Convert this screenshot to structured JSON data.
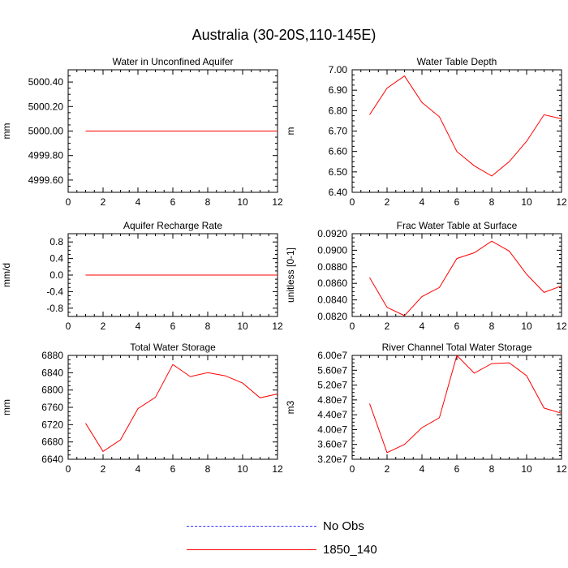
{
  "title": "Australia (30-20S,110-145E)",
  "colors": {
    "model": "#ff0000",
    "obs": "#3333ff",
    "axis": "#000000"
  },
  "legend": {
    "items": [
      {
        "label": "No Obs",
        "style": "dashed",
        "color": "#3333ff"
      },
      {
        "label": "1850_140",
        "style": "solid",
        "color": "#ff0000"
      }
    ]
  },
  "chart_data": [
    {
      "type": "line",
      "title": "Water in Unconfined Aquifer",
      "ylabel": "mm",
      "xlim": [
        0,
        12
      ],
      "ylim": [
        4999.5,
        5000.5
      ],
      "xticks": [
        0,
        2,
        4,
        6,
        8,
        10,
        12
      ],
      "yticks": [
        4999.6,
        4999.8,
        5000.0,
        5000.2,
        5000.4
      ],
      "ytick_labels": [
        "4999.60",
        "4999.80",
        "5000.00",
        "5000.20",
        "5000.40"
      ],
      "series": [
        {
          "name": "1850_140",
          "color": "#ff0000",
          "x": [
            1,
            2,
            3,
            4,
            5,
            6,
            7,
            8,
            9,
            10,
            11,
            12
          ],
          "y": [
            5000,
            5000,
            5000,
            5000,
            5000,
            5000,
            5000,
            5000,
            5000,
            5000,
            5000,
            5000
          ]
        }
      ]
    },
    {
      "type": "line",
      "title": "Water Table Depth",
      "ylabel": "m",
      "xlim": [
        0,
        12
      ],
      "ylim": [
        6.4,
        7.0
      ],
      "xticks": [
        0,
        2,
        4,
        6,
        8,
        10,
        12
      ],
      "yticks": [
        6.4,
        6.5,
        6.6,
        6.7,
        6.8,
        6.9,
        7.0
      ],
      "ytick_labels": [
        "6.40",
        "6.50",
        "6.60",
        "6.70",
        "6.80",
        "6.90",
        "7.00"
      ],
      "series": [
        {
          "name": "1850_140",
          "color": "#ff0000",
          "x": [
            1,
            2,
            3,
            4,
            5,
            6,
            7,
            8,
            9,
            10,
            11,
            12
          ],
          "y": [
            6.78,
            6.91,
            6.97,
            6.84,
            6.77,
            6.6,
            6.53,
            6.48,
            6.55,
            6.65,
            6.78,
            6.76
          ]
        }
      ]
    },
    {
      "type": "line",
      "title": "Aquifer Recharge Rate",
      "ylabel": "mm/d",
      "xlim": [
        0,
        12
      ],
      "ylim": [
        -1.0,
        1.0
      ],
      "xticks": [
        0,
        2,
        4,
        6,
        8,
        10,
        12
      ],
      "yticks": [
        -0.8,
        -0.4,
        0.0,
        0.4,
        0.8
      ],
      "ytick_labels": [
        "-0.8",
        "-0.4",
        "0.0",
        "0.4",
        "0.8"
      ],
      "series": [
        {
          "name": "1850_140",
          "color": "#ff0000",
          "x": [
            1,
            2,
            3,
            4,
            5,
            6,
            7,
            8,
            9,
            10,
            11,
            12
          ],
          "y": [
            0,
            0,
            0,
            0,
            0,
            0,
            0,
            0,
            0,
            0,
            0,
            0
          ]
        }
      ]
    },
    {
      "type": "line",
      "title": "Frac Water Table at Surface",
      "ylabel": "unitless [0-1]",
      "xlim": [
        0,
        12
      ],
      "ylim": [
        0.082,
        0.092
      ],
      "xticks": [
        0,
        2,
        4,
        6,
        8,
        10,
        12
      ],
      "yticks": [
        0.082,
        0.084,
        0.086,
        0.088,
        0.09,
        0.092
      ],
      "ytick_labels": [
        "0.0820",
        "0.0840",
        "0.0860",
        "0.0880",
        "0.0900",
        "0.0920"
      ],
      "series": [
        {
          "name": "1850_140",
          "color": "#ff0000",
          "x": [
            1,
            2,
            3,
            4,
            5,
            6,
            7,
            8,
            9,
            10,
            11,
            12
          ],
          "y": [
            0.0867,
            0.0831,
            0.0821,
            0.0844,
            0.0855,
            0.089,
            0.0897,
            0.0911,
            0.0899,
            0.0871,
            0.0849,
            0.0857
          ]
        }
      ]
    },
    {
      "type": "line",
      "title": "Total Water Storage",
      "ylabel": "mm",
      "xlim": [
        0,
        12
      ],
      "ylim": [
        6640,
        6880
      ],
      "xticks": [
        0,
        2,
        4,
        6,
        8,
        10,
        12
      ],
      "yticks": [
        6640,
        6680,
        6720,
        6760,
        6800,
        6840,
        6880
      ],
      "ytick_labels": [
        "6640",
        "6680",
        "6720",
        "6760",
        "6800",
        "6840",
        "6880"
      ],
      "series": [
        {
          "name": "1850_140",
          "color": "#ff0000",
          "x": [
            1,
            2,
            3,
            4,
            5,
            6,
            7,
            8,
            9,
            10,
            11,
            12
          ],
          "y": [
            6723,
            6658,
            6685,
            6757,
            6783,
            6859,
            6831,
            6840,
            6833,
            6816,
            6782,
            6791
          ]
        }
      ]
    },
    {
      "type": "line",
      "title": "River Channel Total Water Storage",
      "ylabel": "m3",
      "xlim": [
        0,
        12
      ],
      "ylim": [
        32000000,
        60000000
      ],
      "xticks": [
        0,
        2,
        4,
        6,
        8,
        10,
        12
      ],
      "yticks": [
        32000000,
        36000000,
        40000000,
        44000000,
        48000000,
        52000000,
        56000000,
        60000000
      ],
      "ytick_labels": [
        "3.20e7",
        "3.60e7",
        "4.00e7",
        "4.40e7",
        "4.80e7",
        "5.20e7",
        "5.60e7",
        "6.00e7"
      ],
      "series": [
        {
          "name": "1850_140",
          "color": "#ff0000",
          "x": [
            1,
            2,
            3,
            4,
            5,
            6,
            7,
            8,
            9,
            10,
            11,
            12
          ],
          "y": [
            47000000,
            33800000,
            36000000,
            40500000,
            43200000,
            60000000,
            55200000,
            57800000,
            58000000,
            54500000,
            45800000,
            44400000
          ]
        }
      ]
    }
  ]
}
